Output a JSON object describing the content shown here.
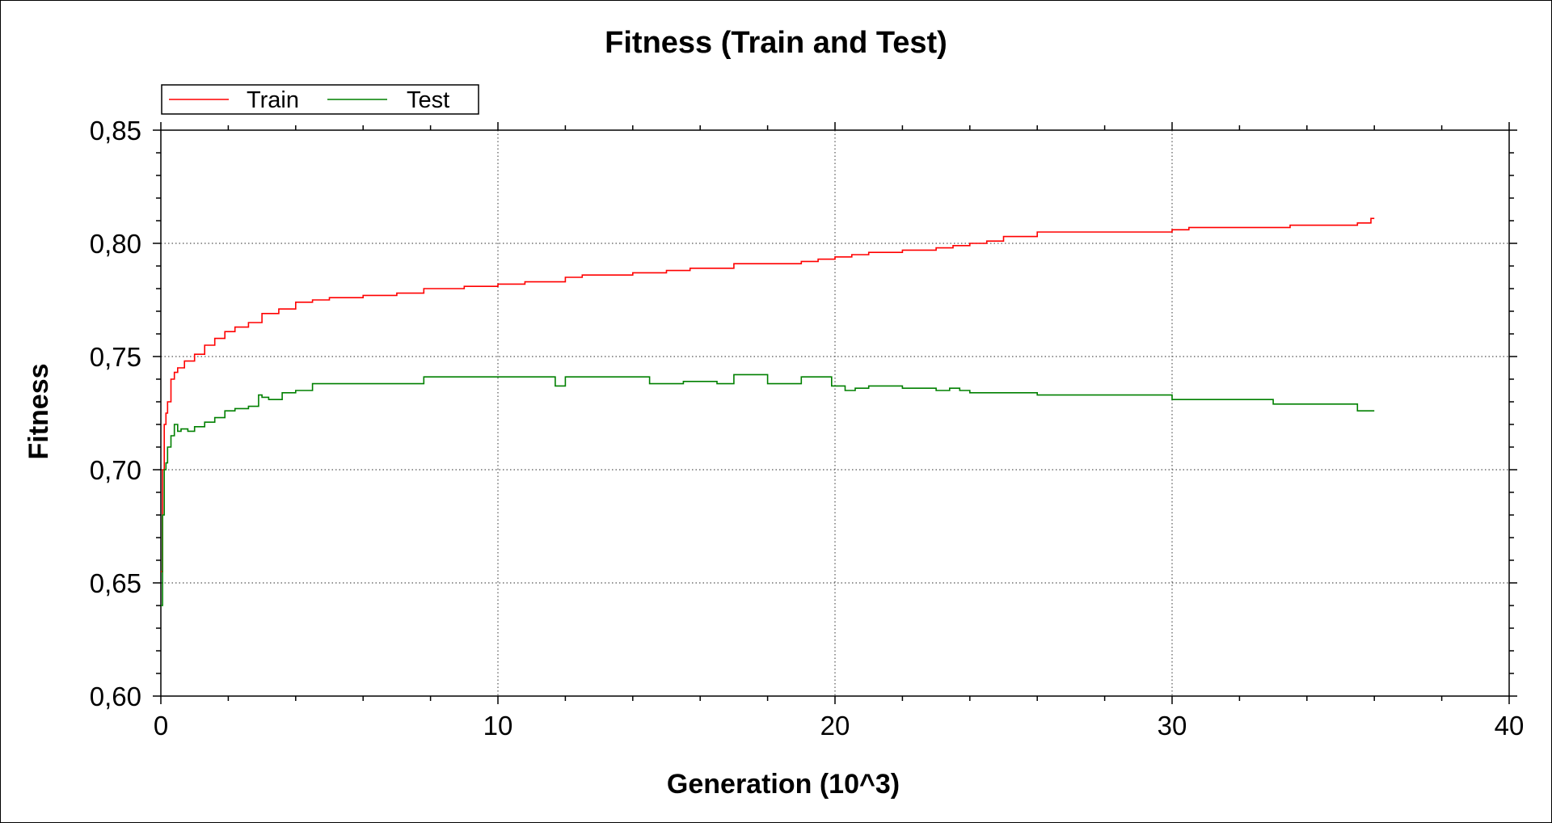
{
  "chart_data": {
    "type": "line",
    "title": "Fitness (Train and Test)",
    "xlabel": "Generation (10^3)",
    "ylabel": "Fitness",
    "xlim": [
      0,
      40
    ],
    "ylim": [
      0.6,
      0.85
    ],
    "x_ticks": [
      "0",
      "10",
      "20",
      "30",
      "40"
    ],
    "y_ticks": [
      "0,60",
      "0,65",
      "0,70",
      "0,75",
      "0,80",
      "0,85"
    ],
    "grid": true,
    "legend_position": "top-left",
    "series": [
      {
        "name": "Train",
        "color": "#ff0000",
        "x": [
          0,
          0.05,
          0.1,
          0.15,
          0.2,
          0.3,
          0.4,
          0.5,
          0.7,
          1.0,
          1.3,
          1.6,
          1.9,
          2.2,
          2.6,
          3.0,
          3.5,
          4.0,
          4.5,
          5.0,
          6.0,
          7.0,
          7.8,
          9.0,
          10.0,
          10.8,
          12.0,
          12.5,
          14.0,
          15.0,
          15.7,
          16.5,
          17.0,
          18.0,
          19.0,
          19.5,
          20.0,
          20.5,
          21.0,
          22.0,
          22.5,
          23.0,
          23.5,
          24.0,
          24.5,
          25.0,
          25.5,
          26.0,
          27.0,
          28.0,
          29.0,
          29.5,
          30.0,
          30.5,
          31.0,
          32.0,
          33.0,
          33.5,
          34.0,
          35.0,
          35.5,
          35.9,
          36.0
        ],
        "values": [
          0.655,
          0.7,
          0.72,
          0.725,
          0.73,
          0.74,
          0.743,
          0.745,
          0.748,
          0.751,
          0.755,
          0.758,
          0.761,
          0.763,
          0.765,
          0.769,
          0.771,
          0.774,
          0.775,
          0.776,
          0.777,
          0.778,
          0.78,
          0.781,
          0.782,
          0.783,
          0.785,
          0.786,
          0.787,
          0.788,
          0.789,
          0.789,
          0.791,
          0.791,
          0.792,
          0.793,
          0.794,
          0.795,
          0.796,
          0.797,
          0.797,
          0.798,
          0.799,
          0.8,
          0.801,
          0.803,
          0.803,
          0.805,
          0.805,
          0.805,
          0.805,
          0.805,
          0.806,
          0.807,
          0.807,
          0.807,
          0.807,
          0.808,
          0.808,
          0.808,
          0.809,
          0.811,
          0.811
        ]
      },
      {
        "name": "Test",
        "color": "#008000",
        "x": [
          0,
          0.05,
          0.1,
          0.15,
          0.2,
          0.3,
          0.4,
          0.5,
          0.6,
          0.8,
          1.0,
          1.3,
          1.6,
          1.9,
          2.2,
          2.6,
          2.9,
          3.0,
          3.2,
          3.6,
          4.0,
          4.5,
          5.0,
          6.0,
          7.0,
          7.8,
          9.0,
          10.0,
          11.5,
          11.7,
          12.0,
          14.0,
          14.5,
          15.0,
          15.5,
          16.5,
          17.0,
          18.0,
          19.0,
          19.9,
          20.3,
          20.6,
          21.0,
          22.0,
          23.0,
          23.4,
          23.7,
          24.0,
          25.0,
          26.0,
          27.0,
          28.0,
          29.5,
          30.0,
          31.0,
          32.0,
          33.0,
          34.0,
          35.0,
          35.5,
          36.0
        ],
        "values": [
          0.64,
          0.68,
          0.7,
          0.703,
          0.71,
          0.715,
          0.72,
          0.717,
          0.718,
          0.717,
          0.719,
          0.721,
          0.723,
          0.726,
          0.727,
          0.728,
          0.733,
          0.732,
          0.731,
          0.734,
          0.735,
          0.738,
          0.738,
          0.738,
          0.738,
          0.741,
          0.741,
          0.741,
          0.741,
          0.737,
          0.741,
          0.741,
          0.738,
          0.738,
          0.739,
          0.738,
          0.742,
          0.738,
          0.741,
          0.737,
          0.735,
          0.736,
          0.737,
          0.736,
          0.735,
          0.736,
          0.735,
          0.734,
          0.734,
          0.733,
          0.733,
          0.733,
          0.733,
          0.731,
          0.731,
          0.731,
          0.729,
          0.729,
          0.729,
          0.726,
          0.726
        ]
      }
    ]
  }
}
